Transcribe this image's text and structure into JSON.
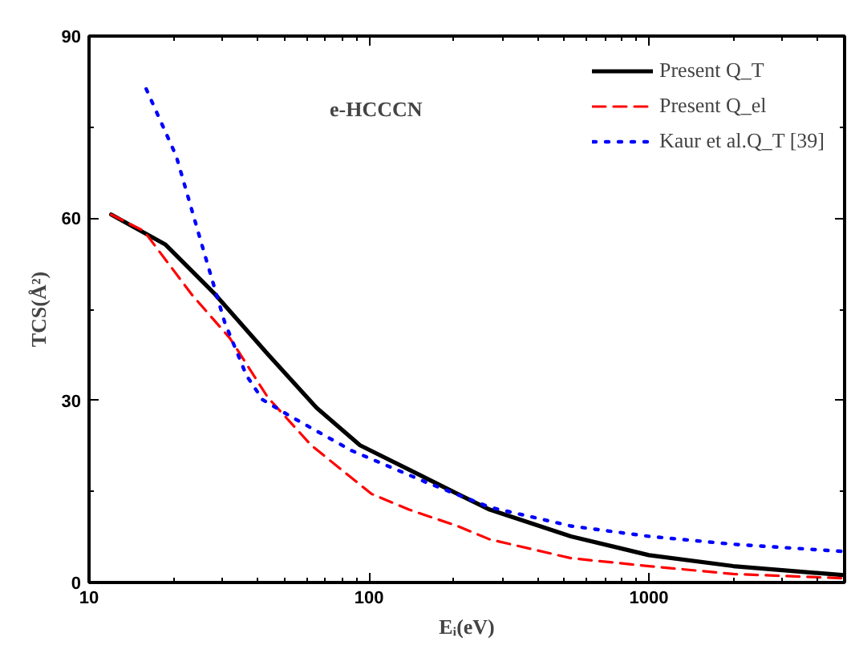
{
  "chart_data": {
    "type": "line",
    "title": "e-HCCCN",
    "xlabel": "Eᵢ(eV)",
    "ylabel": "TCS(Å²)",
    "log": "x",
    "xlim": [
      10,
      5000
    ],
    "xticks": [
      10,
      100,
      1000
    ],
    "ylim": [
      0,
      90
    ],
    "yticks": [
      0,
      30,
      60,
      90
    ],
    "grid": false,
    "legend": "top right",
    "marker": "none",
    "series": [
      {
        "name": "Present Q_T",
        "color": "#000000",
        "line_style": "solid",
        "x": [
          12,
          18.7,
          27.9,
          43.5,
          64.9,
          92.9,
          139,
          207,
          270,
          527,
          1000,
          2000,
          5000
        ],
        "values": [
          60.6,
          55.7,
          47.7,
          37.6,
          28.8,
          22.6,
          18.6,
          14.6,
          12.0,
          7.6,
          4.5,
          2.7,
          1.2
        ]
      },
      {
        "name": "Present Q_el",
        "color": "#ff0000",
        "line_style": "dashed",
        "x": [
          12,
          15.7,
          23.4,
          31.9,
          43.5,
          62.2,
          102,
          139,
          207,
          270,
          527,
          1000,
          2000,
          5000
        ],
        "values": [
          60.6,
          57.9,
          47.3,
          40.2,
          30.5,
          22.6,
          14.6,
          12.0,
          9.3,
          7.1,
          4.0,
          2.7,
          1.4,
          0.7
        ]
      },
      {
        "name": "Kaur et al.Q_T [39]",
        "color": "#0000ff",
        "line_style": "dotted",
        "x": [
          16.0,
          20.5,
          25.6,
          30.5,
          36.5,
          41.7,
          53.2,
          86.9,
          162,
          270,
          527,
          1000,
          2000,
          5000
        ],
        "values": [
          81.3,
          70.2,
          54.8,
          42.9,
          34.1,
          30.1,
          27.2,
          21.7,
          16.4,
          12.4,
          9.3,
          7.6,
          6.3,
          5.1
        ]
      }
    ]
  }
}
